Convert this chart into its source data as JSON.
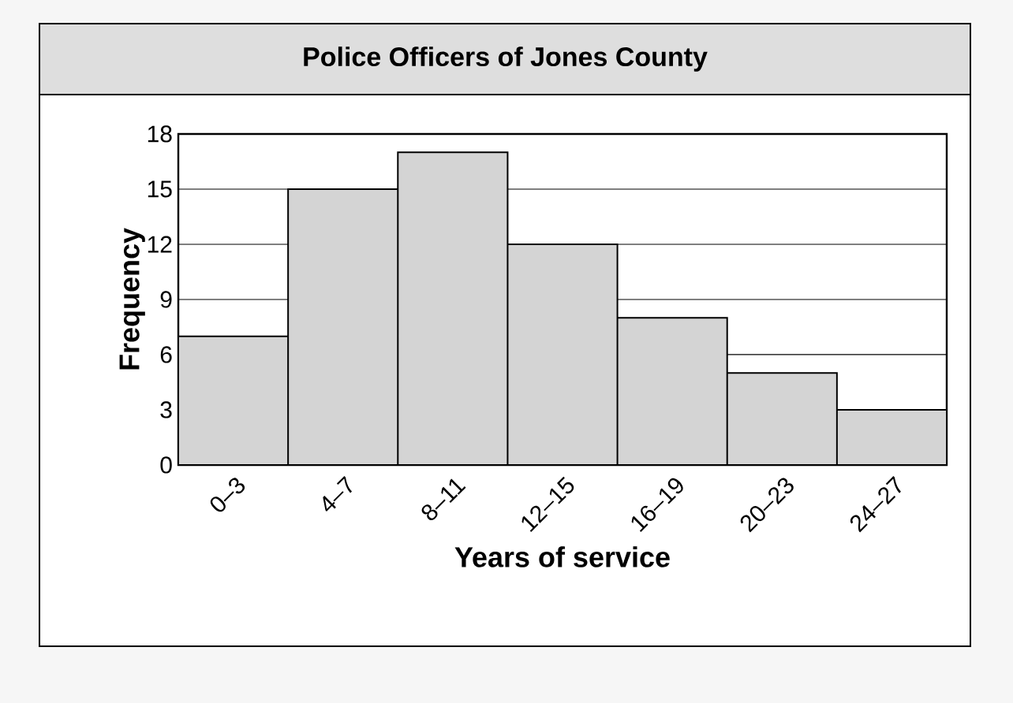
{
  "chart_data": {
    "type": "bar",
    "title": "Police Officers of Jones County",
    "xlabel": "Years of service",
    "ylabel": "Frequency",
    "categories": [
      "0–3",
      "4–7",
      "8–11",
      "12–15",
      "16–19",
      "20–23",
      "24–27"
    ],
    "values": [
      7,
      15,
      17,
      12,
      8,
      5,
      3
    ],
    "color": "#d4d4d4",
    "ylim": [
      0,
      18
    ],
    "yticks": [
      0,
      3,
      6,
      9,
      12,
      15,
      18
    ],
    "grid": "y"
  }
}
